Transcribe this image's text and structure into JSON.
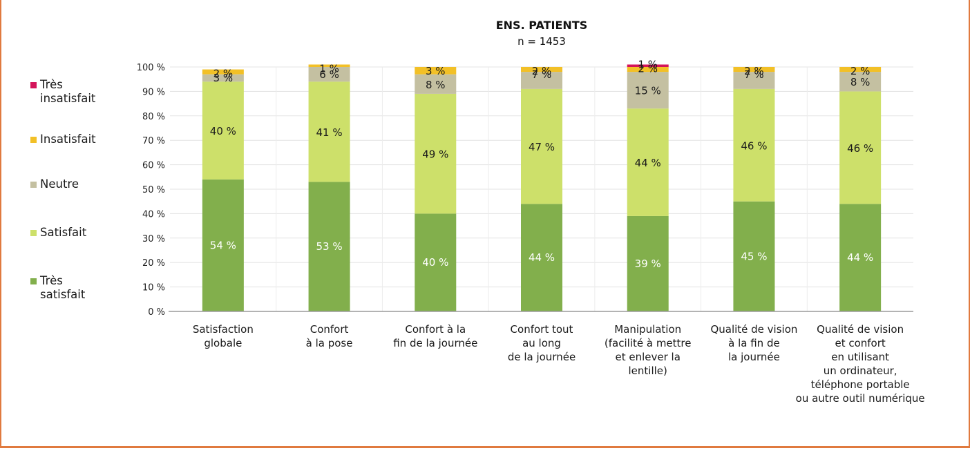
{
  "chart_data": {
    "type": "bar",
    "stacked": true,
    "title": "ENS. PATIENTS",
    "subtitle": "n = 1453",
    "categories": [
      "Satisfaction\nglobale",
      "Confort\nà la pose",
      "Confort à la\nfin de la journée",
      "Confort tout\nau long\nde la journée",
      "Manipulation\n(facilité à mettre\net enlever la\nlentille)",
      "Qualité de vision\nà la fin de\nla journée",
      "Qualité de vision\net confort\nen utilisant\nun ordinateur,\ntéléphone portable\nou autre outil numérique"
    ],
    "ylim": [
      0,
      100
    ],
    "yticks": [
      "0 %",
      "10 %",
      "20 %",
      "30 %",
      "40 %",
      "50 %",
      "60 %",
      "70 %",
      "80 %",
      "90 %",
      "100 %"
    ],
    "series": [
      {
        "name": "Très satisfait",
        "color": "#82af4c",
        "values": [
          54,
          53,
          40,
          44,
          39,
          45,
          44
        ],
        "labels": [
          "54 %",
          "53 %",
          "40 %",
          "44 %",
          "39 %",
          "45 %",
          "44 %"
        ]
      },
      {
        "name": "Satisfait",
        "color": "#cde06a",
        "values": [
          40,
          41,
          49,
          47,
          44,
          46,
          46
        ],
        "labels": [
          "40 %",
          "41 %",
          "49 %",
          "47 %",
          "44 %",
          "46 %",
          "46 %"
        ]
      },
      {
        "name": "Neutre",
        "color": "#c4c0a1",
        "values": [
          3,
          6,
          8,
          7,
          15,
          7,
          8
        ],
        "labels": [
          "3 %",
          "6 %",
          "8 %",
          "7 %",
          "15 %",
          "7 %",
          "8 %"
        ]
      },
      {
        "name": "Insatisfait",
        "color": "#f2c027",
        "values": [
          2,
          1,
          3,
          2,
          2,
          2,
          2
        ],
        "labels": [
          "2 %",
          "1 %",
          "3 %",
          "2 %",
          "2 %",
          "2 %",
          "2 %"
        ]
      },
      {
        "name": "Très insatisfait",
        "color": "#d4145a",
        "values": [
          0,
          0,
          0,
          0,
          1,
          0,
          0
        ],
        "labels": [
          "",
          "",
          "",
          "",
          "1 %",
          "",
          ""
        ]
      }
    ],
    "legend": [
      "Très\ninsatisfait",
      "Insatisfait",
      "Neutre",
      "Satisfait",
      "Très satisfait"
    ],
    "legend_position": "left",
    "grid": true
  }
}
